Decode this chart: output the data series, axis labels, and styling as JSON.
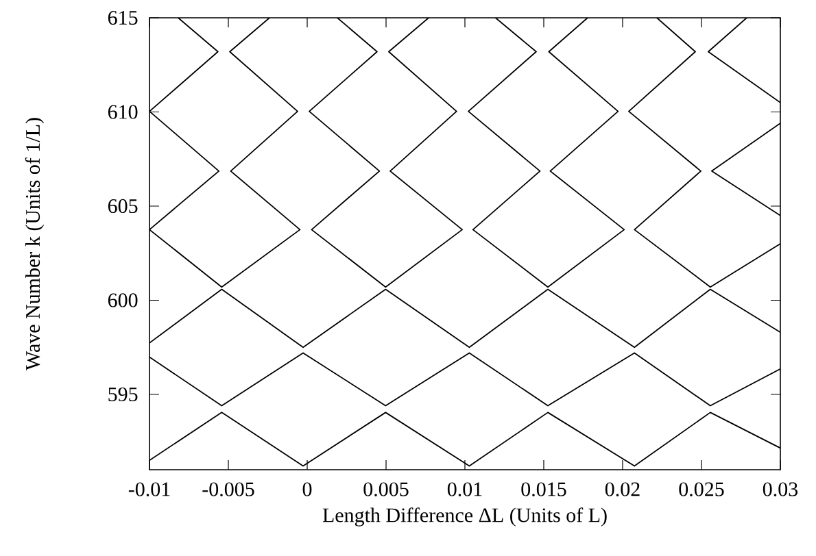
{
  "chart_data": {
    "type": "line",
    "xlabel": "Length Difference ΔL (Units of L)",
    "ylabel": "Wave Number k (Units of 1/L)",
    "xlim": [
      -0.01,
      0.03
    ],
    "ylim": [
      591,
      615
    ],
    "xticks": [
      -0.01,
      -0.005,
      0,
      0.005,
      0.01,
      0.015,
      0.02,
      0.025,
      0.03
    ],
    "yticks": [
      595,
      600,
      605,
      610,
      615
    ],
    "grid": false,
    "marker": "none",
    "line_style": "solid",
    "series": [
      {
        "type": "line",
        "color": "#000000",
        "x": [
          -0.01,
          -0.00542,
          -0.00026,
          0.00497,
          0.01028,
          0.01526,
          0.02075,
          0.02556,
          0.03
        ],
        "values": [
          591.5,
          594.04,
          591.2,
          594.04,
          591.2,
          594.04,
          591.2,
          594.04,
          592.15
        ]
      },
      {
        "type": "line",
        "color": "#000000",
        "x": [
          -0.01,
          -0.00542,
          -0.00026,
          0.00497,
          0.01028,
          0.01526,
          0.02075,
          0.02556,
          0.03
        ],
        "values": [
          596.98,
          594.4,
          597.2,
          594.4,
          597.2,
          594.4,
          597.2,
          594.4,
          596.35
        ]
      },
      {
        "type": "line",
        "color": "#000000",
        "x": [
          -0.01,
          -0.00542,
          -0.00026,
          0.00497,
          0.01028,
          0.01526,
          0.02075,
          0.02556,
          0.03
        ],
        "values": [
          597.73,
          600.58,
          597.5,
          600.58,
          597.5,
          600.58,
          597.5,
          600.58,
          598.3
        ]
      },
      {
        "type": "line",
        "color": "#000000",
        "x": [
          -0.00818,
          -0.00566,
          -0.01,
          -0.0056,
          -0.01,
          -0.00542,
          -0.00046,
          -0.00485,
          -0.00061,
          -0.00491,
          -0.00239
        ],
        "values": [
          615,
          613.2,
          610.03,
          606.86,
          603.75,
          600.7,
          603.75,
          606.86,
          610.03,
          613.2,
          615
        ]
      },
      {
        "type": "line",
        "color": "#000000",
        "x": [
          0.00191,
          0.00443,
          0.00013,
          0.00458,
          0.00028,
          0.00497,
          0.00983,
          0.00526,
          0.00947,
          0.00517,
          0.0077
        ],
        "values": [
          615,
          613.2,
          610.03,
          606.86,
          603.75,
          600.7,
          603.75,
          606.86,
          610.03,
          613.2,
          615
        ]
      },
      {
        "type": "line",
        "color": "#000000",
        "x": [
          0.01194,
          0.01452,
          0.01022,
          0.01476,
          0.01051,
          0.01526,
          0.0201,
          0.01541,
          0.01971,
          0.01532,
          0.01778
        ],
        "values": [
          615,
          613.2,
          610.03,
          606.86,
          603.75,
          600.7,
          603.75,
          606.86,
          610.03,
          613.2,
          615
        ]
      },
      {
        "type": "line",
        "color": "#000000",
        "x": [
          0.02217,
          0.02461,
          0.02039,
          0.02496,
          0.02075,
          0.02556,
          0.03
        ],
        "values": [
          615,
          613.2,
          610.03,
          606.86,
          603.75,
          600.7,
          603.0
        ]
      },
      {
        "type": "line",
        "color": "#000000",
        "x": [
          0.03,
          0.02565,
          0.03
        ],
        "values": [
          604.5,
          606.86,
          609.4
        ]
      },
      {
        "type": "line",
        "color": "#000000",
        "x": [
          0.03,
          0.02543,
          0.02787
        ],
        "values": [
          610.5,
          613.2,
          615
        ]
      }
    ]
  }
}
